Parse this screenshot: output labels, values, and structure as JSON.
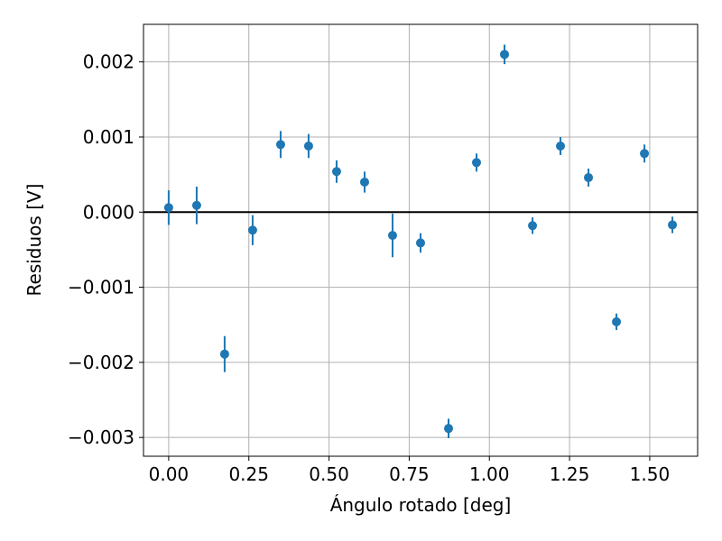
{
  "chart_data": {
    "type": "scatter",
    "title": "",
    "xlabel": "Ángulo rotado [deg]",
    "ylabel": "Residuos [V]",
    "xlim": [
      -0.0785,
      1.6494
    ],
    "ylim": [
      -0.00325,
      0.0025
    ],
    "xticks": [
      0.0,
      0.25,
      0.5,
      0.75,
      1.0,
      1.25,
      1.5
    ],
    "xtick_labels": [
      "0.00",
      "0.25",
      "0.50",
      "0.75",
      "1.00",
      "1.25",
      "1.50"
    ],
    "yticks": [
      -0.003,
      -0.002,
      -0.001,
      0.0,
      0.001,
      0.002
    ],
    "ytick_labels": [
      "−0.003",
      "−0.002",
      "−0.001",
      "0.000",
      "0.001",
      "0.002"
    ],
    "grid": true,
    "reference_line_y": 0.0,
    "marker_color": "#1f77b4",
    "reference_line_color": "#000000",
    "grid_color": "#b0b0b0",
    "points": [
      {
        "x": 0.0,
        "y": 6e-05,
        "err": 0.00023
      },
      {
        "x": 0.0873,
        "y": 9e-05,
        "err": 0.00025
      },
      {
        "x": 0.1745,
        "y": -0.00189,
        "err": 0.00024
      },
      {
        "x": 0.2618,
        "y": -0.00024,
        "err": 0.0002
      },
      {
        "x": 0.3491,
        "y": 0.0009,
        "err": 0.00018
      },
      {
        "x": 0.4363,
        "y": 0.00088,
        "err": 0.00016
      },
      {
        "x": 0.5236,
        "y": 0.00054,
        "err": 0.00015
      },
      {
        "x": 0.6109,
        "y": 0.0004,
        "err": 0.00014
      },
      {
        "x": 0.6981,
        "y": -0.00031,
        "err": 0.00029
      },
      {
        "x": 0.7854,
        "y": -0.00041,
        "err": 0.00013
      },
      {
        "x": 0.8727,
        "y": -0.00288,
        "err": 0.00013
      },
      {
        "x": 0.9599,
        "y": 0.00066,
        "err": 0.00012
      },
      {
        "x": 1.0472,
        "y": 0.0021,
        "err": 0.00013
      },
      {
        "x": 1.1345,
        "y": -0.00018,
        "err": 0.00011
      },
      {
        "x": 1.2217,
        "y": 0.00088,
        "err": 0.00012
      },
      {
        "x": 1.309,
        "y": 0.00046,
        "err": 0.00012
      },
      {
        "x": 1.3963,
        "y": -0.00146,
        "err": 0.00011
      },
      {
        "x": 1.4835,
        "y": 0.00078,
        "err": 0.00012
      },
      {
        "x": 1.5708,
        "y": -0.00017,
        "err": 0.00011
      }
    ]
  }
}
